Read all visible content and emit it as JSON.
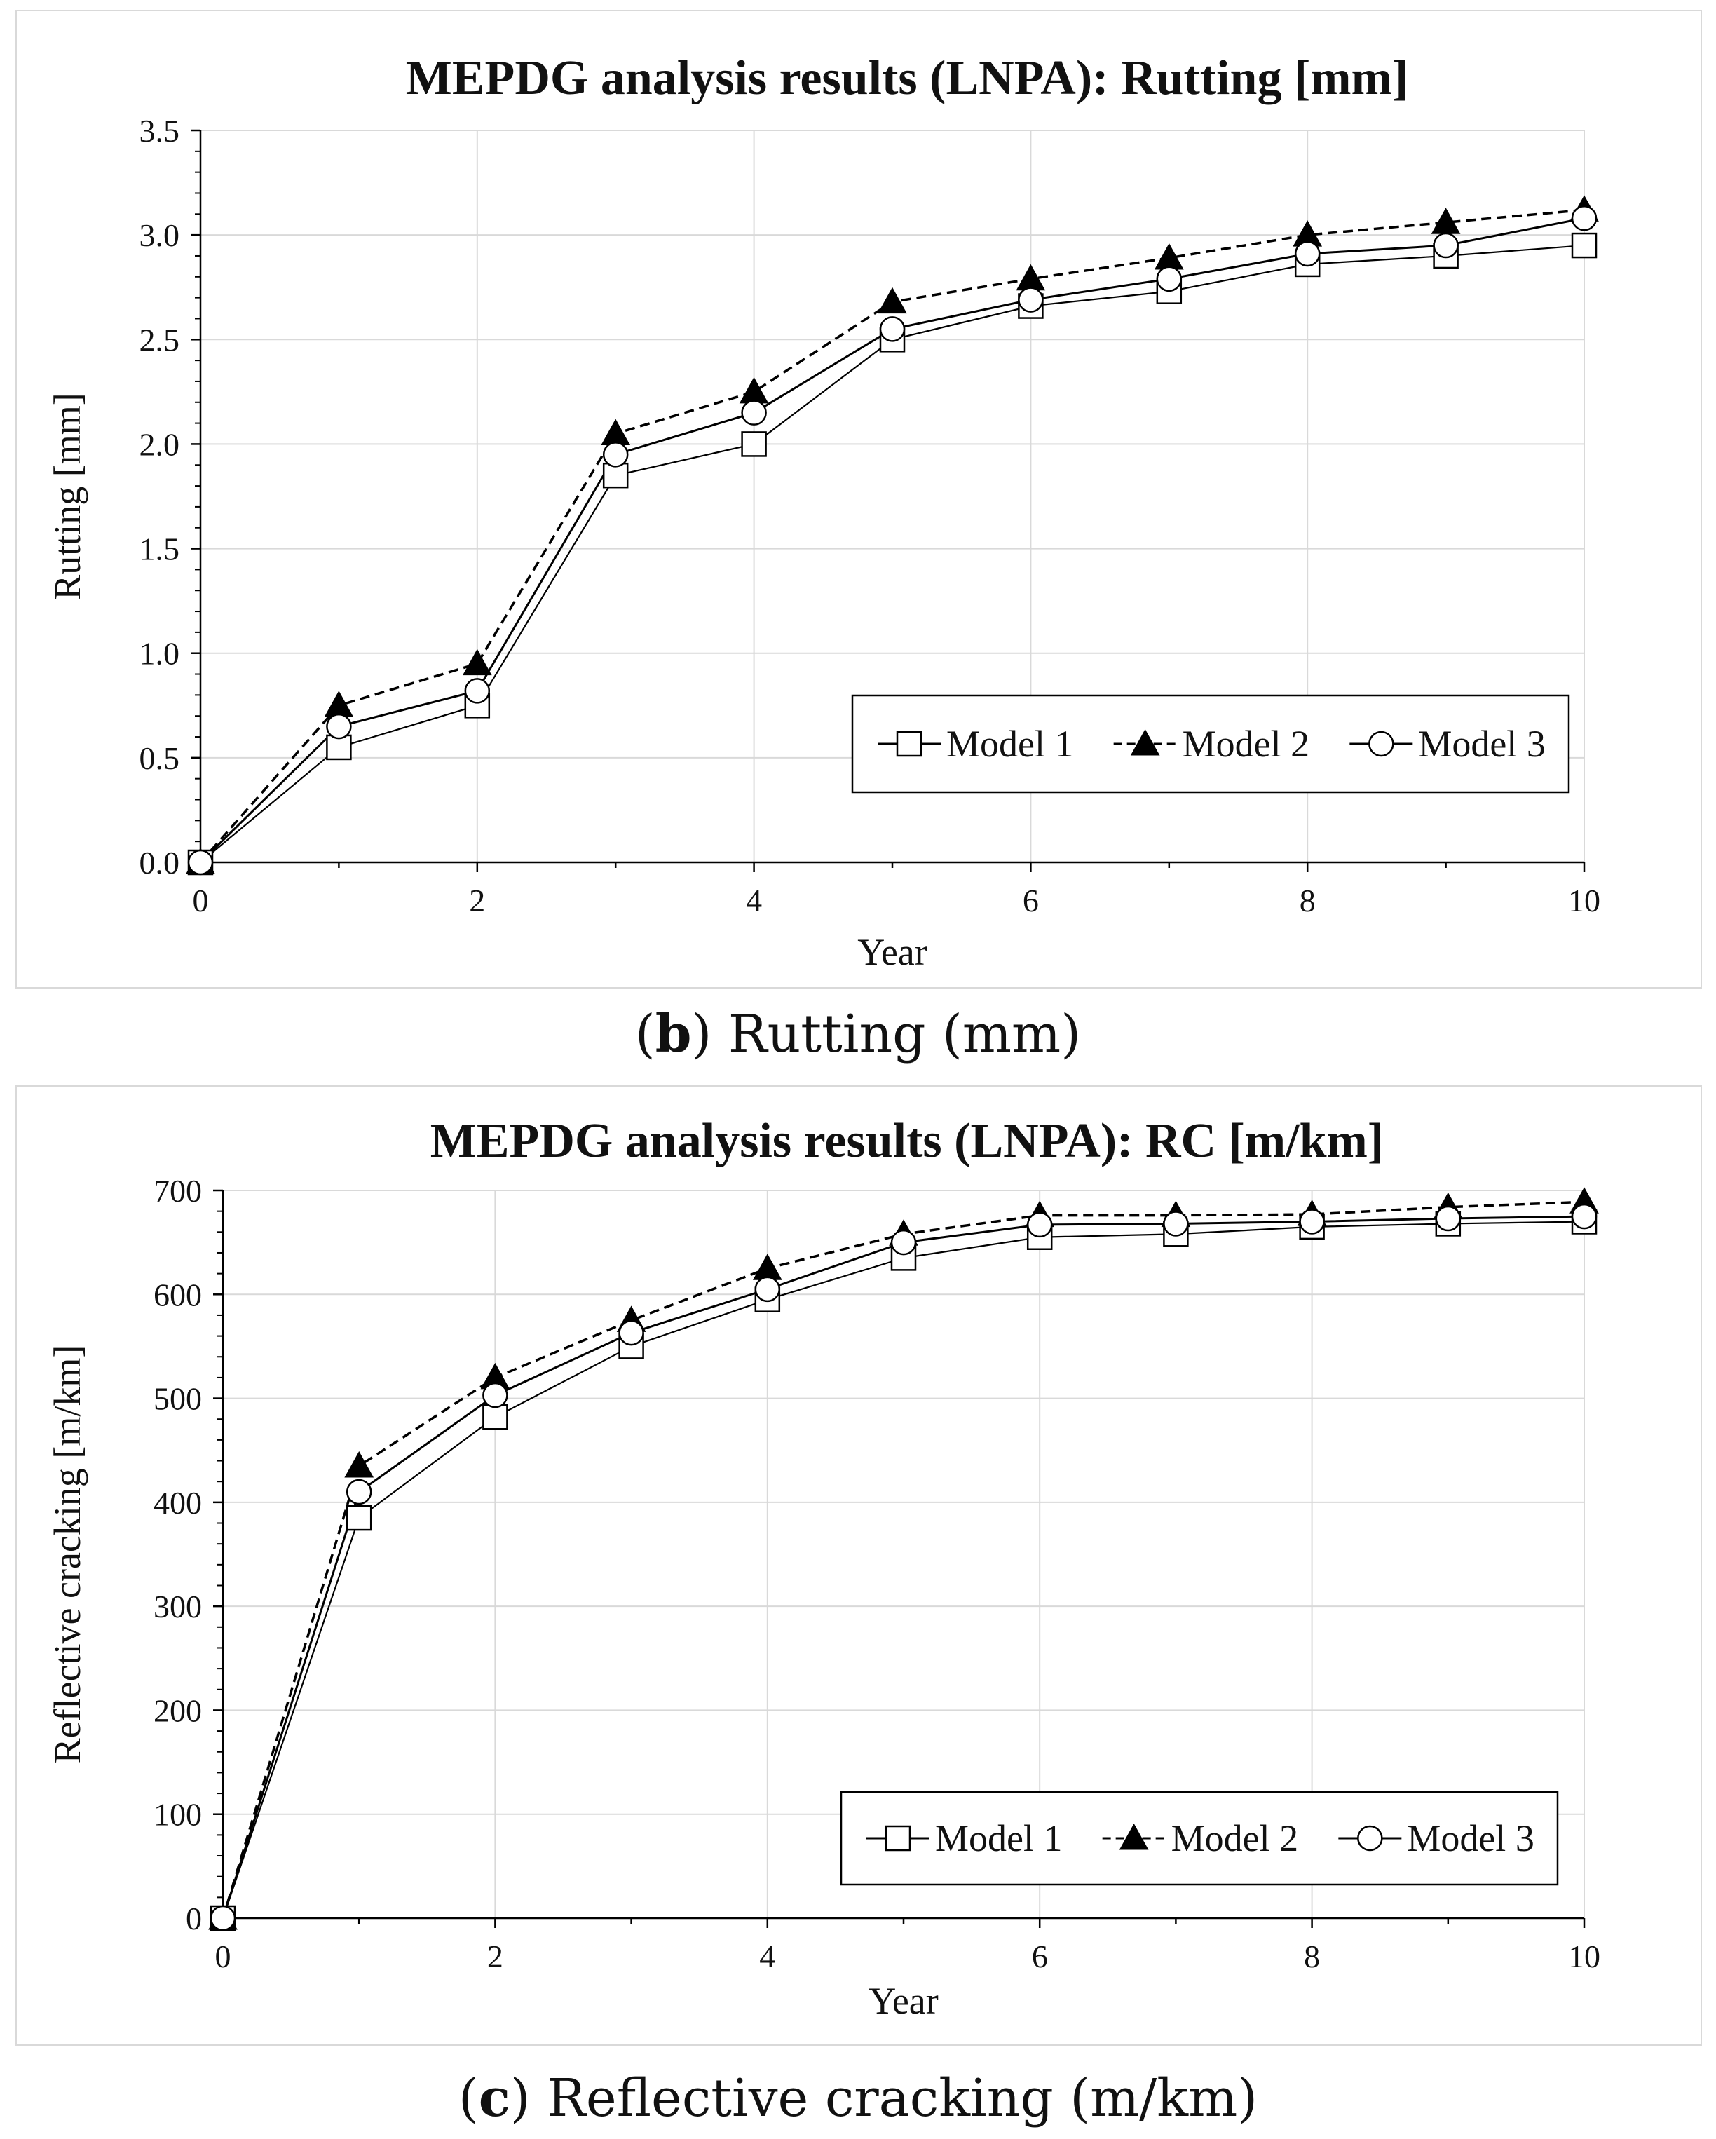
{
  "chart_data": [
    {
      "type": "line",
      "panel": "b",
      "title": "MEPDG analysis results (LNPA): Rutting [mm]",
      "xlabel": "Year",
      "ylabel": "Rutting [mm]",
      "xlim": [
        0,
        10
      ],
      "ylim": [
        0,
        3.5
      ],
      "xticks": [
        0,
        2,
        4,
        6,
        8,
        10
      ],
      "yticks": [
        0.0,
        0.5,
        1.0,
        1.5,
        2.0,
        2.5,
        3.0,
        3.5
      ],
      "ytick_labels": [
        "0.0",
        "0.5",
        "1.0",
        "1.5",
        "2.0",
        "2.5",
        "3.0",
        "3.5"
      ],
      "xtick_labels": [
        "0",
        "2",
        "4",
        "6",
        "8",
        "10"
      ],
      "grid": true,
      "legend_position": "bottom-right",
      "x": [
        0,
        1,
        2,
        3,
        4,
        5,
        6,
        7,
        8,
        9,
        10
      ],
      "series": [
        {
          "name": "Model 1",
          "marker": "square-open",
          "line": "solid",
          "values": [
            0.0,
            0.55,
            0.75,
            1.85,
            2.0,
            2.5,
            2.66,
            2.73,
            2.86,
            2.9,
            2.95
          ]
        },
        {
          "name": "Model 2",
          "marker": "triangle-filled",
          "line": "dashed",
          "values": [
            0.0,
            0.75,
            0.95,
            2.05,
            2.25,
            2.68,
            2.79,
            2.89,
            3.0,
            3.06,
            3.12
          ]
        },
        {
          "name": "Model 3",
          "marker": "circle-open",
          "line": "solid",
          "values": [
            0.0,
            0.65,
            0.82,
            1.95,
            2.15,
            2.55,
            2.69,
            2.79,
            2.91,
            2.95,
            3.08
          ]
        }
      ]
    },
    {
      "type": "line",
      "panel": "c",
      "title": "MEPDG analysis results (LNPA): RC [m/km]",
      "xlabel": "Year",
      "ylabel": "Reflective cracking [m/km]",
      "xlim": [
        0,
        10
      ],
      "ylim": [
        0,
        700
      ],
      "xticks": [
        0,
        2,
        4,
        6,
        8,
        10
      ],
      "yticks": [
        0,
        100,
        200,
        300,
        400,
        500,
        600,
        700
      ],
      "ytick_labels": [
        "0",
        "100",
        "200",
        "300",
        "400",
        "500",
        "600",
        "700"
      ],
      "xtick_labels": [
        "0",
        "2",
        "4",
        "6",
        "8",
        "10"
      ],
      "grid": true,
      "legend_position": "bottom-right",
      "x": [
        0,
        1,
        2,
        3,
        4,
        5,
        6,
        7,
        8,
        9,
        10
      ],
      "series": [
        {
          "name": "Model 1",
          "marker": "square-open",
          "line": "solid",
          "values": [
            0,
            385,
            482,
            550,
            595,
            635,
            655,
            658,
            665,
            668,
            670
          ]
        },
        {
          "name": "Model 2",
          "marker": "triangle-filled",
          "line": "dashed",
          "values": [
            0,
            435,
            520,
            575,
            625,
            658,
            676,
            676,
            677,
            684,
            689
          ]
        },
        {
          "name": "Model 3",
          "marker": "circle-open",
          "line": "solid",
          "values": [
            0,
            410,
            503,
            563,
            605,
            650,
            667,
            668,
            670,
            673,
            675
          ]
        }
      ]
    }
  ],
  "captions": {
    "b": {
      "letter": "b",
      "text": " Rutting (mm)"
    },
    "c": {
      "letter": "c",
      "text": " Reflective cracking (m/km)"
    }
  },
  "colors": {
    "line": "#000000",
    "grid": "#d9d9d9",
    "frame": "#d9d9d9"
  }
}
